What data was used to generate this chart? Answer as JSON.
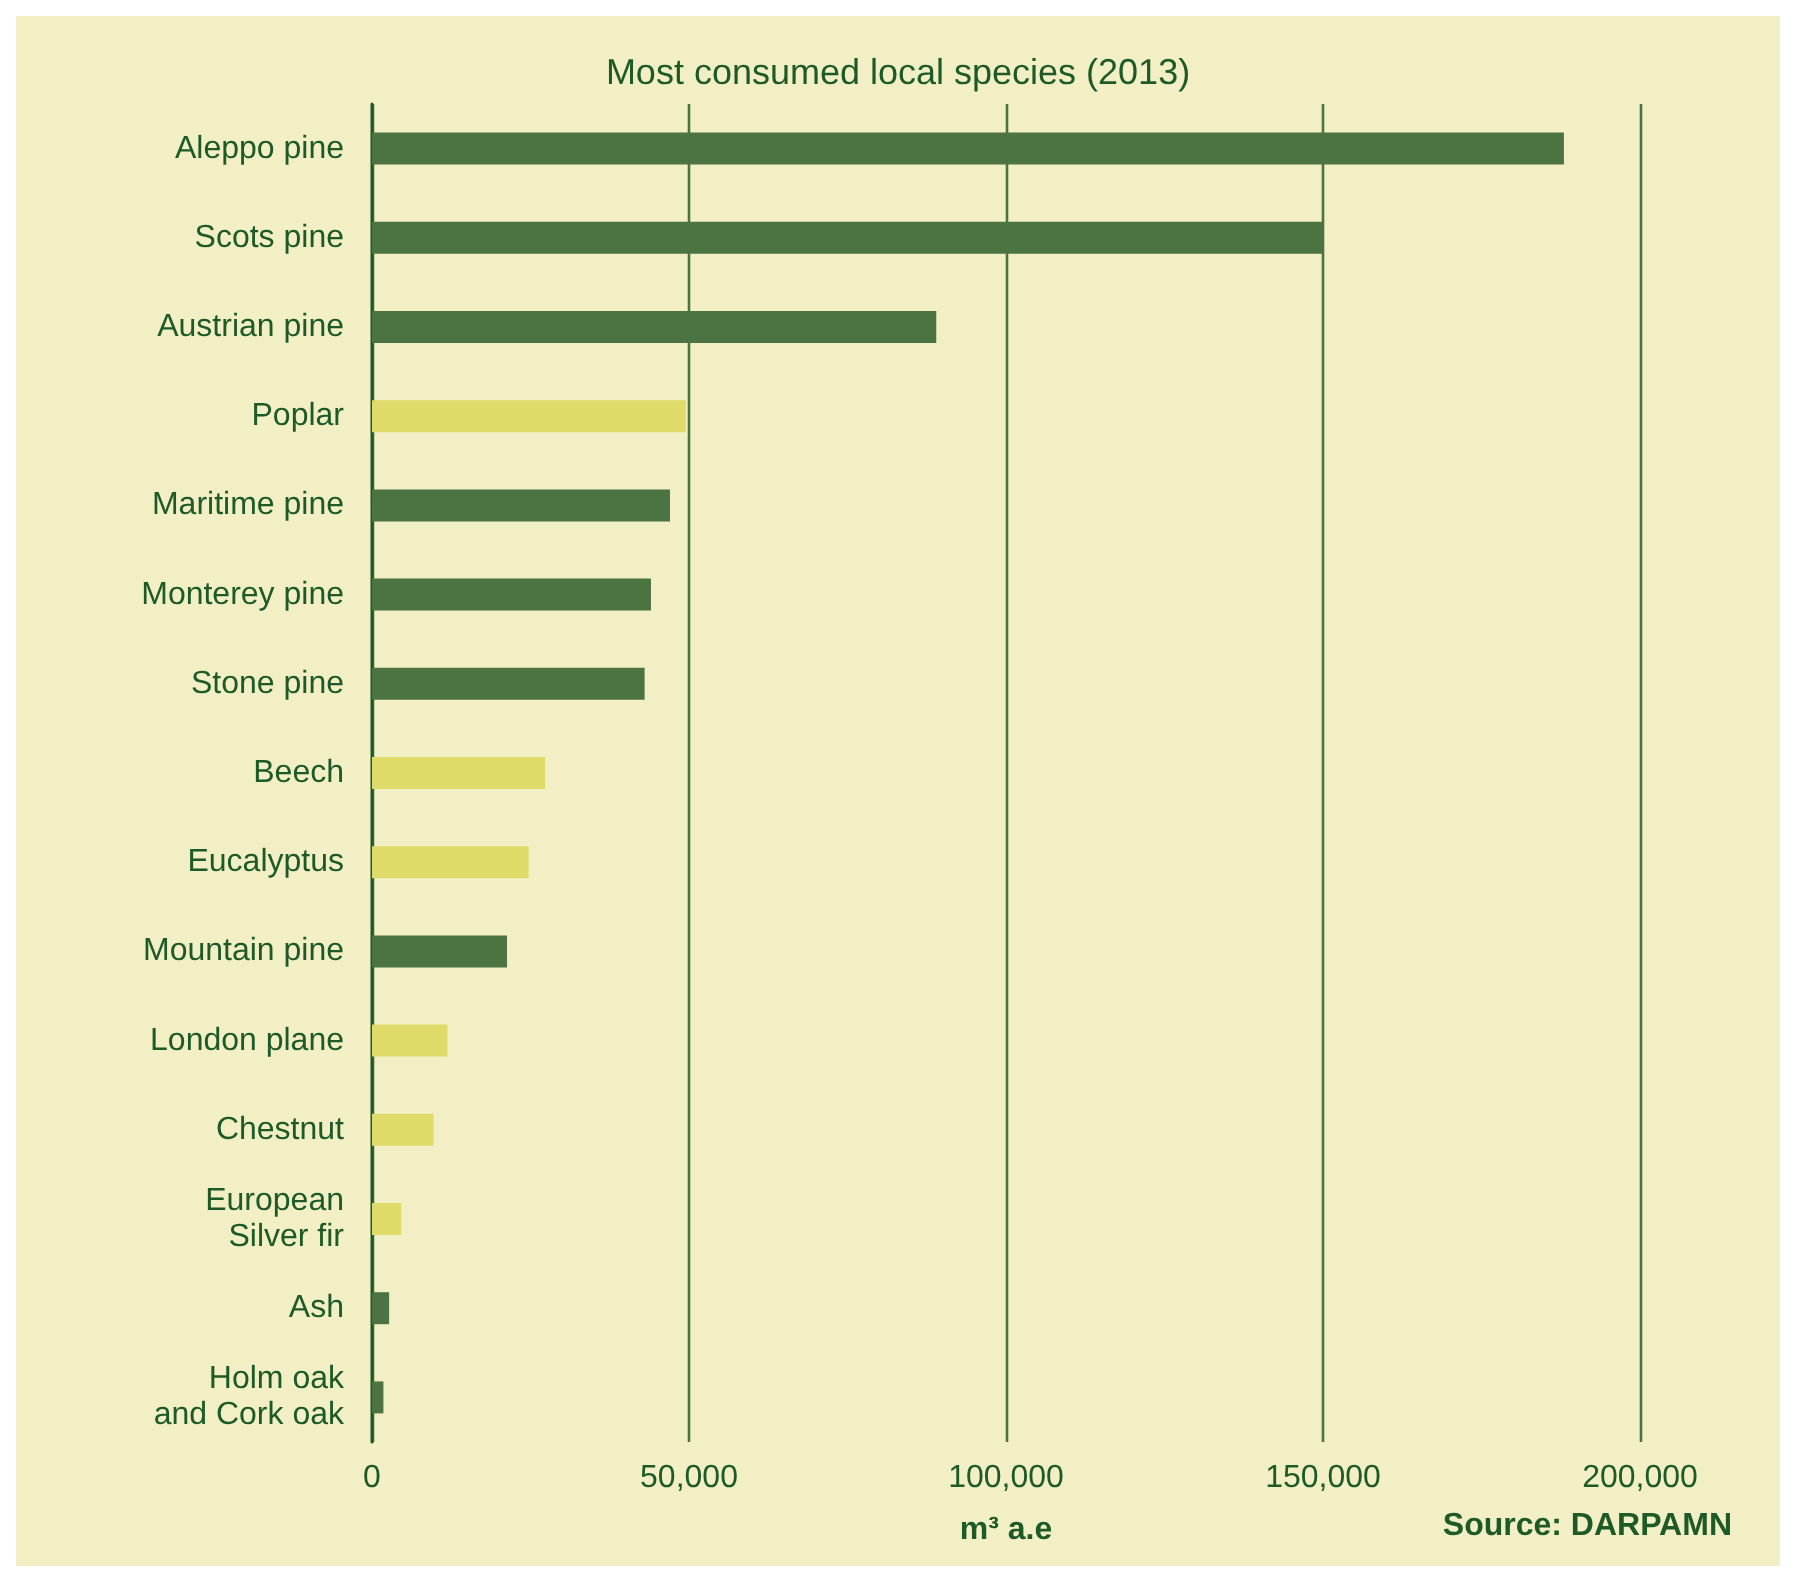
{
  "chart_data": {
    "type": "bar",
    "orientation": "horizontal",
    "title": "Most consumed local species (2013)",
    "xlabel": "m³ a.e",
    "categories": [
      "Aleppo pine",
      "Scots pine",
      "Austrian pine",
      "Poplar",
      "Maritime pine",
      "Monterey pine",
      "Stone pine",
      "Beech",
      "Eucalyptus",
      "Mountain pine",
      "London plane",
      "Chestnut",
      "European\nSilver fir",
      "Ash",
      "Holm oak\nand Cork oak"
    ],
    "values": [
      188000,
      150000,
      89000,
      49500,
      47000,
      44000,
      43000,
      27300,
      24700,
      21300,
      11900,
      9700,
      4600,
      2700,
      1800
    ],
    "colors": [
      "#4c7342",
      "#4c7342",
      "#4c7342",
      "#dedb68",
      "#4c7342",
      "#4c7342",
      "#4c7342",
      "#dedb68",
      "#dedb68",
      "#4c7342",
      "#dedb68",
      "#dedb68",
      "#dedb68",
      "#4c7342",
      "#4c7342"
    ],
    "xlim": [
      0,
      200000
    ],
    "xticks": [
      {
        "value": 0,
        "label": "0"
      },
      {
        "value": 50000,
        "label": "50,000"
      },
      {
        "value": 100000,
        "label": "100,000"
      },
      {
        "value": 150000,
        "label": "150,000"
      },
      {
        "value": 200000,
        "label": "200,000"
      }
    ],
    "grid": "x",
    "annotations": [
      "Source: DARPAMN"
    ]
  }
}
